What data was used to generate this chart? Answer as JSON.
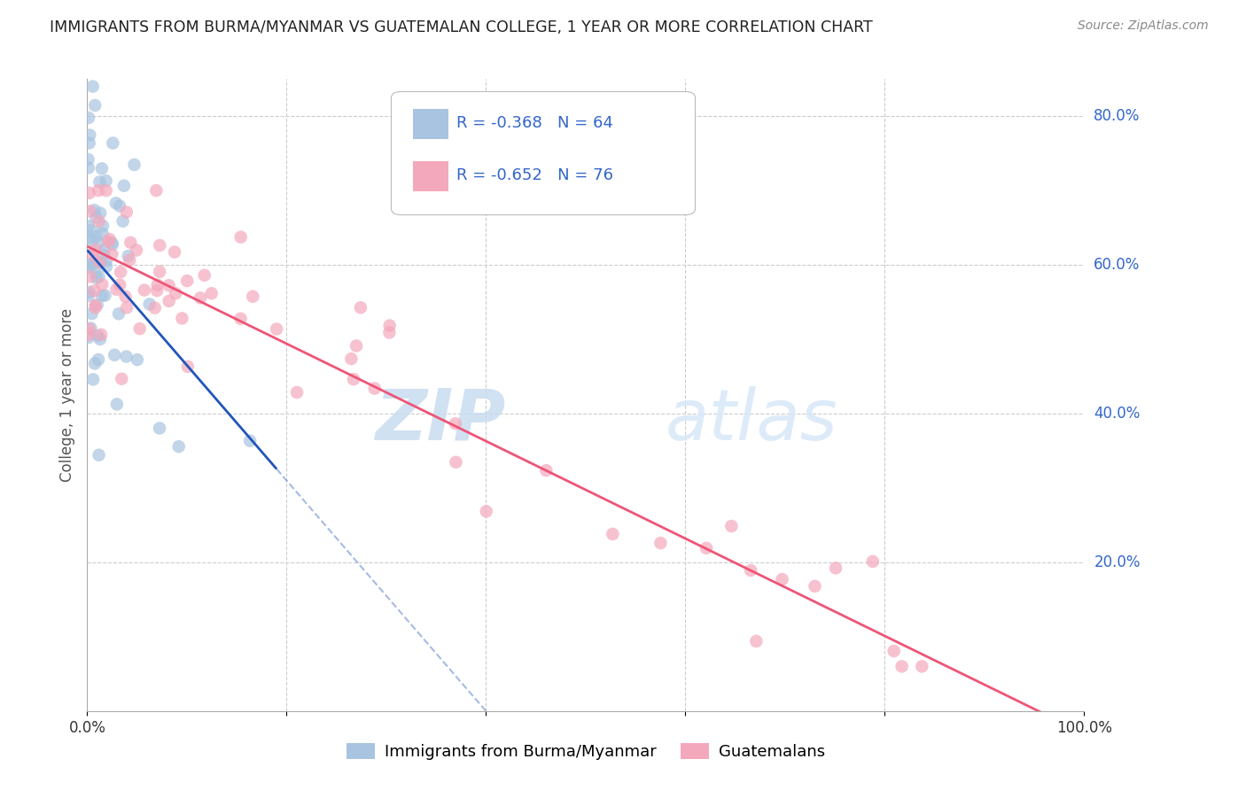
{
  "title": "IMMIGRANTS FROM BURMA/MYANMAR VS GUATEMALAN COLLEGE, 1 YEAR OR MORE CORRELATION CHART",
  "source": "Source: ZipAtlas.com",
  "ylabel": "College, 1 year or more",
  "xlim": [
    0.0,
    1.0
  ],
  "ylim": [
    0.0,
    0.85
  ],
  "x_tick_labels": [
    "0.0%",
    "",
    "",
    "",
    "",
    "100.0%"
  ],
  "y_ticks_right": [
    0.2,
    0.4,
    0.6,
    0.8
  ],
  "y_tick_labels_right": [
    "20.0%",
    "40.0%",
    "60.0%",
    "80.0%"
  ],
  "legend_blue_label": "Immigrants from Burma/Myanmar",
  "legend_pink_label": "Guatemalans",
  "legend_R_blue": "R = -0.368",
  "legend_N_blue": "N = 64",
  "legend_R_pink": "R = -0.652",
  "legend_N_pink": "N = 76",
  "blue_color": "#A8C4E0",
  "pink_color": "#F4A8BC",
  "blue_line_color": "#2255BB",
  "pink_line_color": "#EE5577",
  "watermark_zip": "ZIP",
  "watermark_atlas": "atlas",
  "background_color": "#FFFFFF",
  "grid_color": "#CCCCCC",
  "title_color": "#222222",
  "legend_text_color": "#3366CC",
  "right_axis_color": "#3366CC",
  "blue_line_intercept": 0.62,
  "blue_line_slope": -1.55,
  "blue_line_xmax": 0.19,
  "pink_line_intercept": 0.625,
  "pink_line_slope": -0.655,
  "pink_line_xmax": 1.0
}
